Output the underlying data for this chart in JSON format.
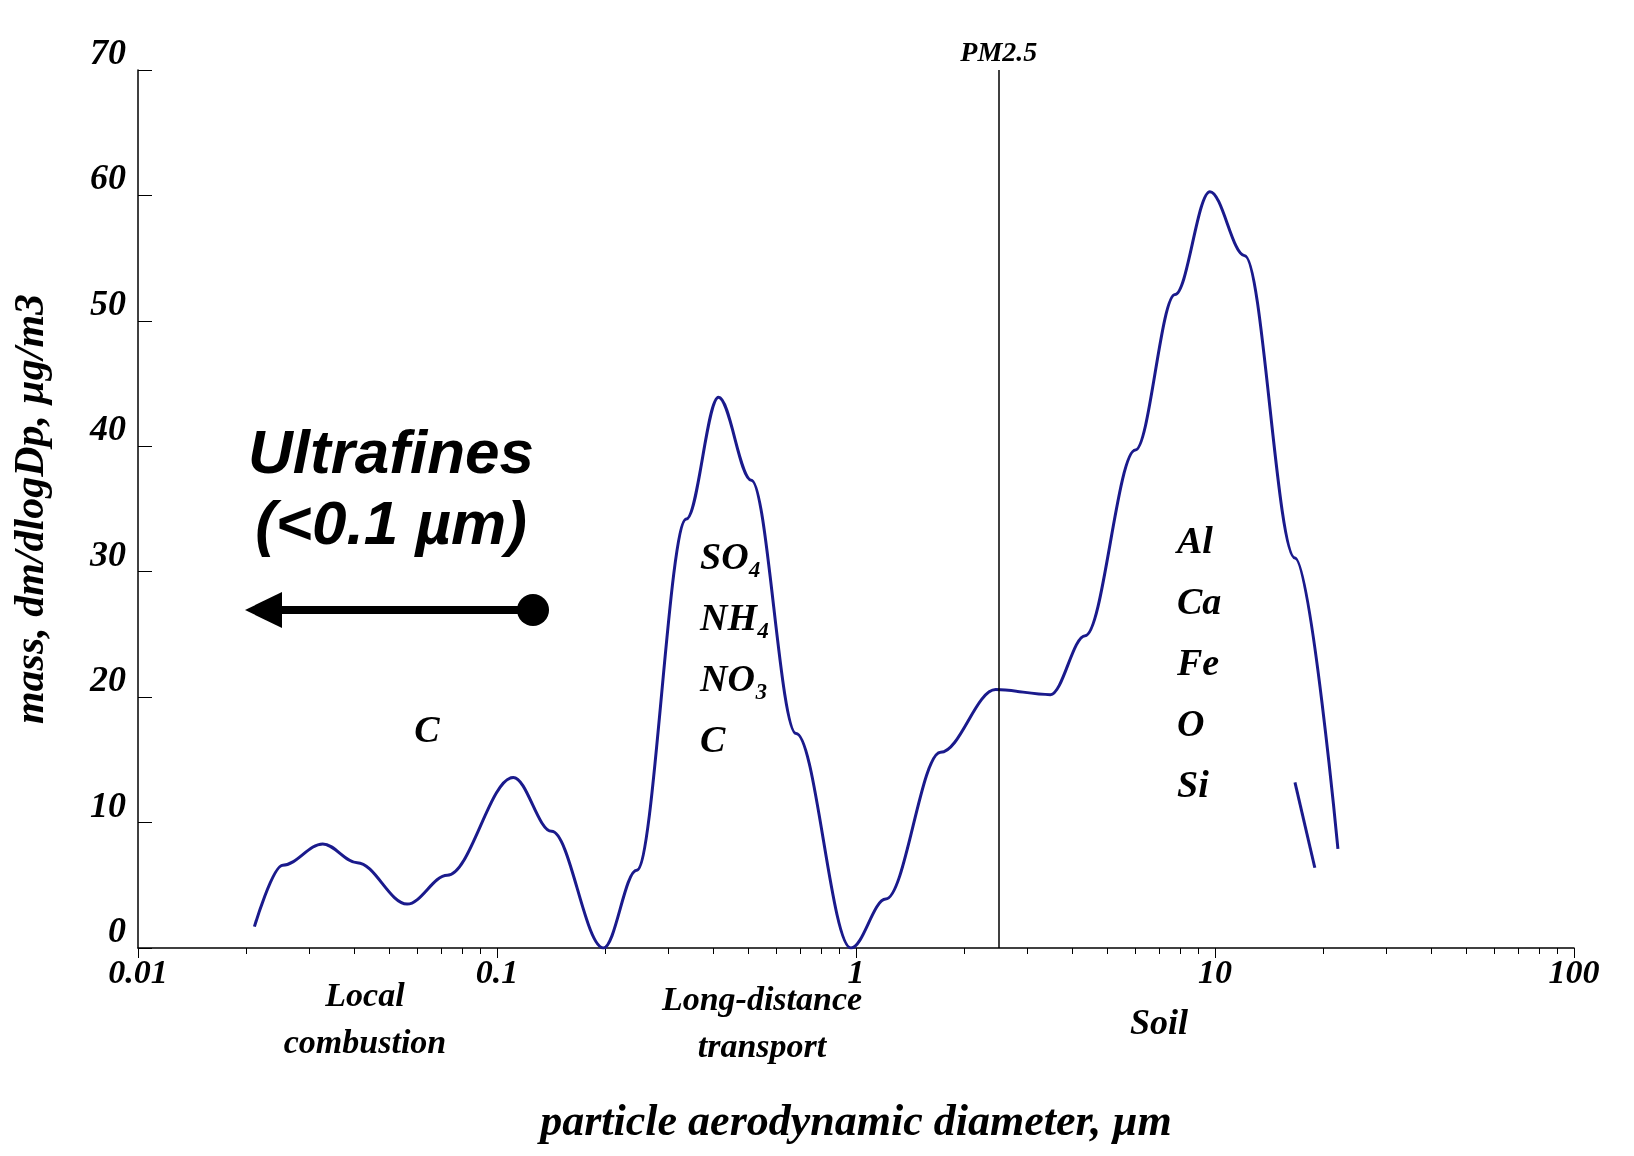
{
  "chart_data": {
    "type": "line",
    "xlabel": "particle aerodynamic diameter, µm",
    "ylabel": "mass, dm/dlogDp, µg/m3",
    "series": [
      {
        "color": "#1a1a8c",
        "x": [
          0.0211,
          0.0253,
          0.0327,
          0.0408,
          0.0562,
          0.0727,
          0.111,
          0.142,
          0.198,
          0.245,
          0.337,
          0.414,
          0.511,
          0.681,
          0.968,
          1.21,
          1.72,
          2.45,
          3.48,
          4.35,
          6.0,
          7.74,
          9.68,
          12.1,
          16.7,
          22.0
        ],
        "values": [
          1.7,
          6.6,
          8.3,
          6.8,
          3.5,
          5.8,
          13.6,
          9.3,
          0,
          6.2,
          34.2,
          43.9,
          37.3,
          17.1,
          0,
          3.9,
          15.6,
          20.6,
          20.2,
          24.9,
          39.7,
          52.1,
          60.3,
          55.2,
          31.1,
          7.9
        ]
      },
      {
        "color": "#1a1a8c",
        "x": [
          16.7,
          18.97
        ],
        "values": [
          13.2,
          6.4
        ]
      }
    ],
    "log": "x",
    "xlim": [
      0.01,
      100
    ],
    "xticks": [
      0.01,
      0.1,
      1,
      10,
      100
    ],
    "ylim": [
      0,
      70
    ],
    "yticks": [
      0,
      10,
      20,
      30,
      40,
      50,
      60,
      70
    ],
    "grid": false,
    "marker": "none",
    "line_style": "solid",
    "ref_lines": [
      {
        "axis": "x",
        "value": 2.5,
        "label": "PM2.5",
        "color": "#000000"
      }
    ],
    "annotations": [
      "C",
      "SO₄\nNH₄\nNO₃\nC",
      "Al\nCa\nFe\nO\nSi",
      "Local\ncombustion",
      "Long-distance\ntransport",
      "Soil",
      "Ultrafines\n(<0.1 µm)"
    ]
  }
}
